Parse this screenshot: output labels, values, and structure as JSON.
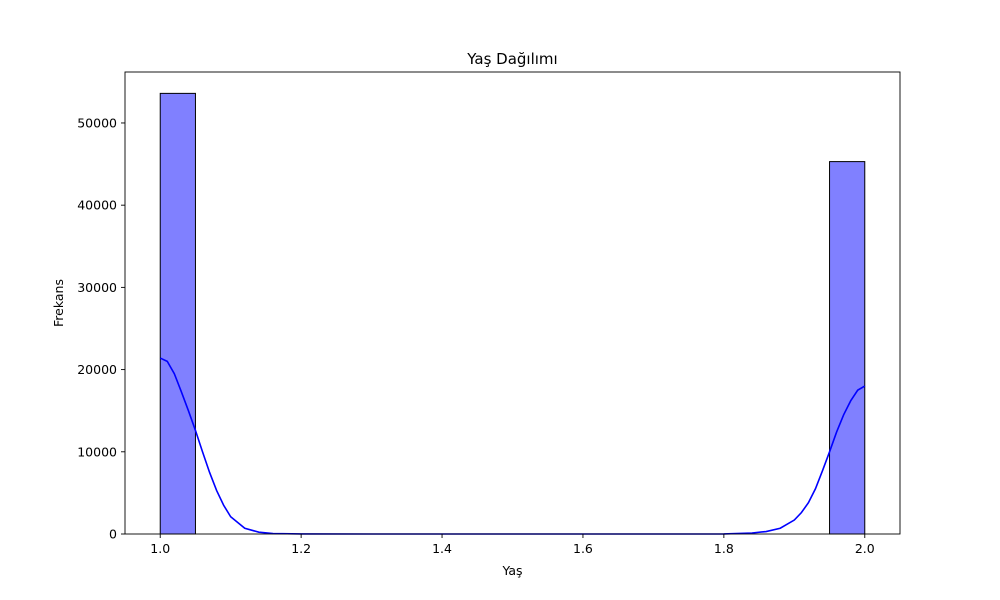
{
  "chart_data": {
    "type": "bar",
    "title": "Yaş Dağılımı",
    "xlabel": "Yaş",
    "ylabel": "Frekans",
    "xlim": [
      0.95,
      2.05
    ],
    "ylim": [
      0,
      56200
    ],
    "x_ticks": [
      1.0,
      1.2,
      1.4,
      1.6,
      1.8,
      2.0
    ],
    "x_tick_labels": [
      "1.0",
      "1.2",
      "1.4",
      "1.6",
      "1.8",
      "2.0"
    ],
    "y_ticks": [
      0,
      10000,
      20000,
      30000,
      40000,
      50000
    ],
    "y_tick_labels": [
      "0",
      "10000",
      "20000",
      "30000",
      "40000",
      "50000"
    ],
    "bin_width": 0.05,
    "bins": [
      {
        "start": 1.0,
        "end": 1.05,
        "count": 53600
      },
      {
        "start": 1.95,
        "end": 2.0,
        "count": 45300
      }
    ],
    "kde": {
      "x": [
        1.0,
        1.01,
        1.02,
        1.03,
        1.04,
        1.05,
        1.06,
        1.07,
        1.08,
        1.09,
        1.1,
        1.12,
        1.14,
        1.16,
        1.2,
        1.3,
        1.5,
        1.7,
        1.8,
        1.84,
        1.86,
        1.88,
        1.9,
        1.91,
        1.92,
        1.93,
        1.94,
        1.95,
        1.96,
        1.97,
        1.98,
        1.99,
        2.0
      ],
      "y": [
        21400,
        21000,
        19500,
        17300,
        15000,
        12600,
        10000,
        7500,
        5300,
        3500,
        2100,
        700,
        220,
        60,
        10,
        0,
        0,
        0,
        10,
        120,
        300,
        700,
        1700,
        2600,
        3800,
        5500,
        7700,
        10000,
        12400,
        14500,
        16200,
        17500,
        18000
      ]
    },
    "bar_color": "#8080ff",
    "bar_edge_color": "#000000",
    "kde_color": "#0000ff",
    "grid": false,
    "legend": "none"
  }
}
